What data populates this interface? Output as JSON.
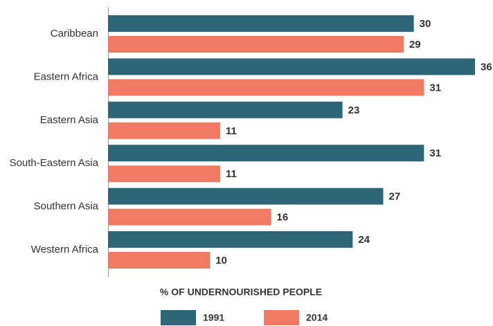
{
  "chart_data": {
    "type": "barh",
    "xlabel": "% OF UNDERNOURISHED PEOPLE",
    "categories": [
      "Caribbean",
      "Eastern Africa",
      "Eastern Asia",
      "South-Eastern Asia",
      "Southern Asia",
      "Western Africa"
    ],
    "series": [
      {
        "name": "1991",
        "color": "#2e6677",
        "values": [
          30,
          36,
          23,
          31,
          27,
          24
        ]
      },
      {
        "name": "2014",
        "color": "#f07a62",
        "values": [
          29,
          31,
          11,
          11,
          16,
          10
        ]
      }
    ]
  }
}
